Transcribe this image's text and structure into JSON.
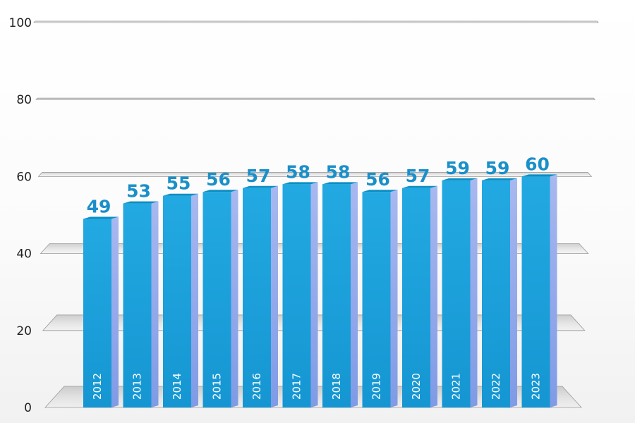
{
  "chart_data": {
    "type": "bar",
    "categories": [
      "2012",
      "2013",
      "2014",
      "2015",
      "2016",
      "2017",
      "2018",
      "2019",
      "2020",
      "2021",
      "2022",
      "2023"
    ],
    "values": [
      49,
      53,
      55,
      56,
      57,
      58,
      58,
      56,
      57,
      59,
      59,
      60
    ],
    "ylim": [
      0,
      100
    ],
    "yticks": [
      0,
      20,
      40,
      60,
      80,
      100
    ],
    "title": "",
    "xlabel": "",
    "ylabel": "",
    "grid": true,
    "legend": "none",
    "colors": {
      "bar_front": "#1aa0dc",
      "bar_top": "#0a8fc4",
      "bar_side": "#8ea6ea",
      "value_label": "#1a8fc9",
      "grid_plane": "#d2d2d2"
    }
  }
}
